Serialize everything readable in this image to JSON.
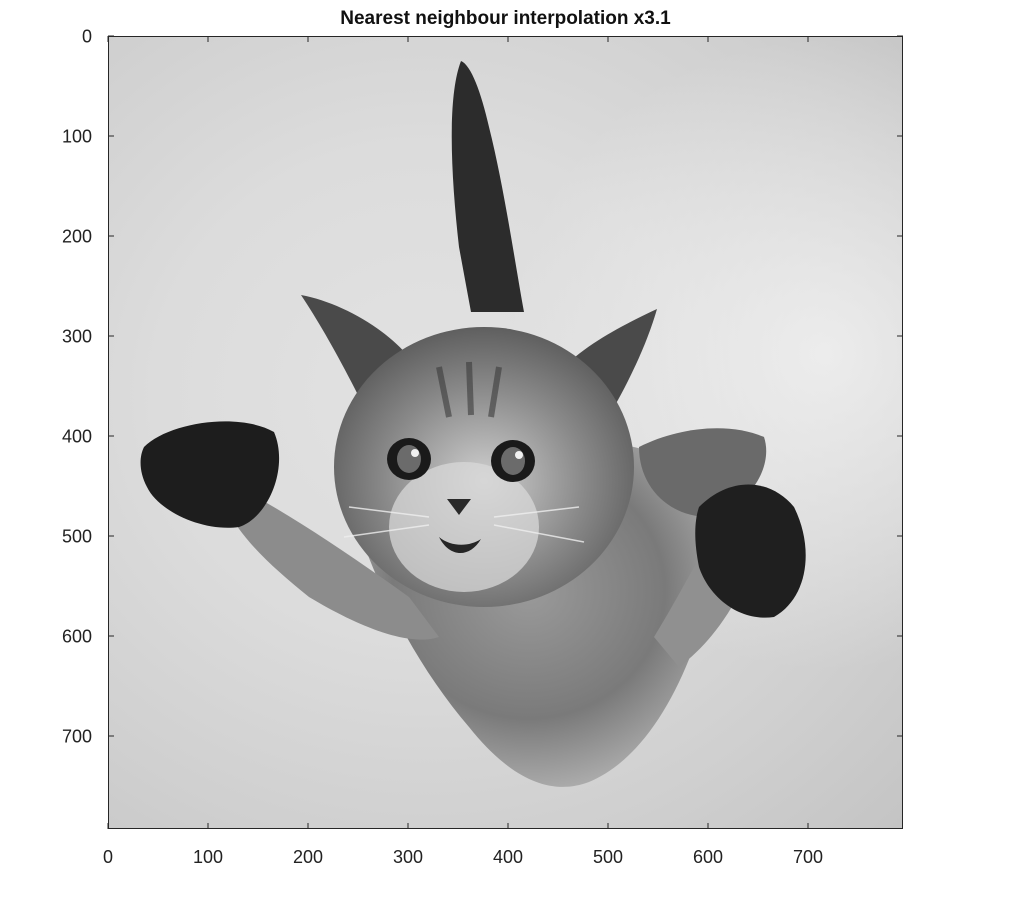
{
  "figure": {
    "title": "Nearest neighbour interpolation x3.1"
  },
  "chart_data": {
    "type": "image",
    "title": "Nearest neighbour interpolation x3.1",
    "colormap": "gray",
    "image_content": "grayscale photograph",
    "xlim": [
      0,
      795
    ],
    "ylim": [
      0,
      793
    ],
    "y_reversed": true,
    "xticks": [
      0,
      100,
      200,
      300,
      400,
      500,
      600,
      700
    ],
    "yticks": [
      0,
      100,
      200,
      300,
      400,
      500,
      600,
      700
    ],
    "xtick_labels": [
      "0",
      "100",
      "200",
      "300",
      "400",
      "500",
      "600",
      "700"
    ],
    "ytick_labels": [
      "0",
      "100",
      "200",
      "300",
      "400",
      "500",
      "600",
      "700"
    ],
    "grid": false
  }
}
